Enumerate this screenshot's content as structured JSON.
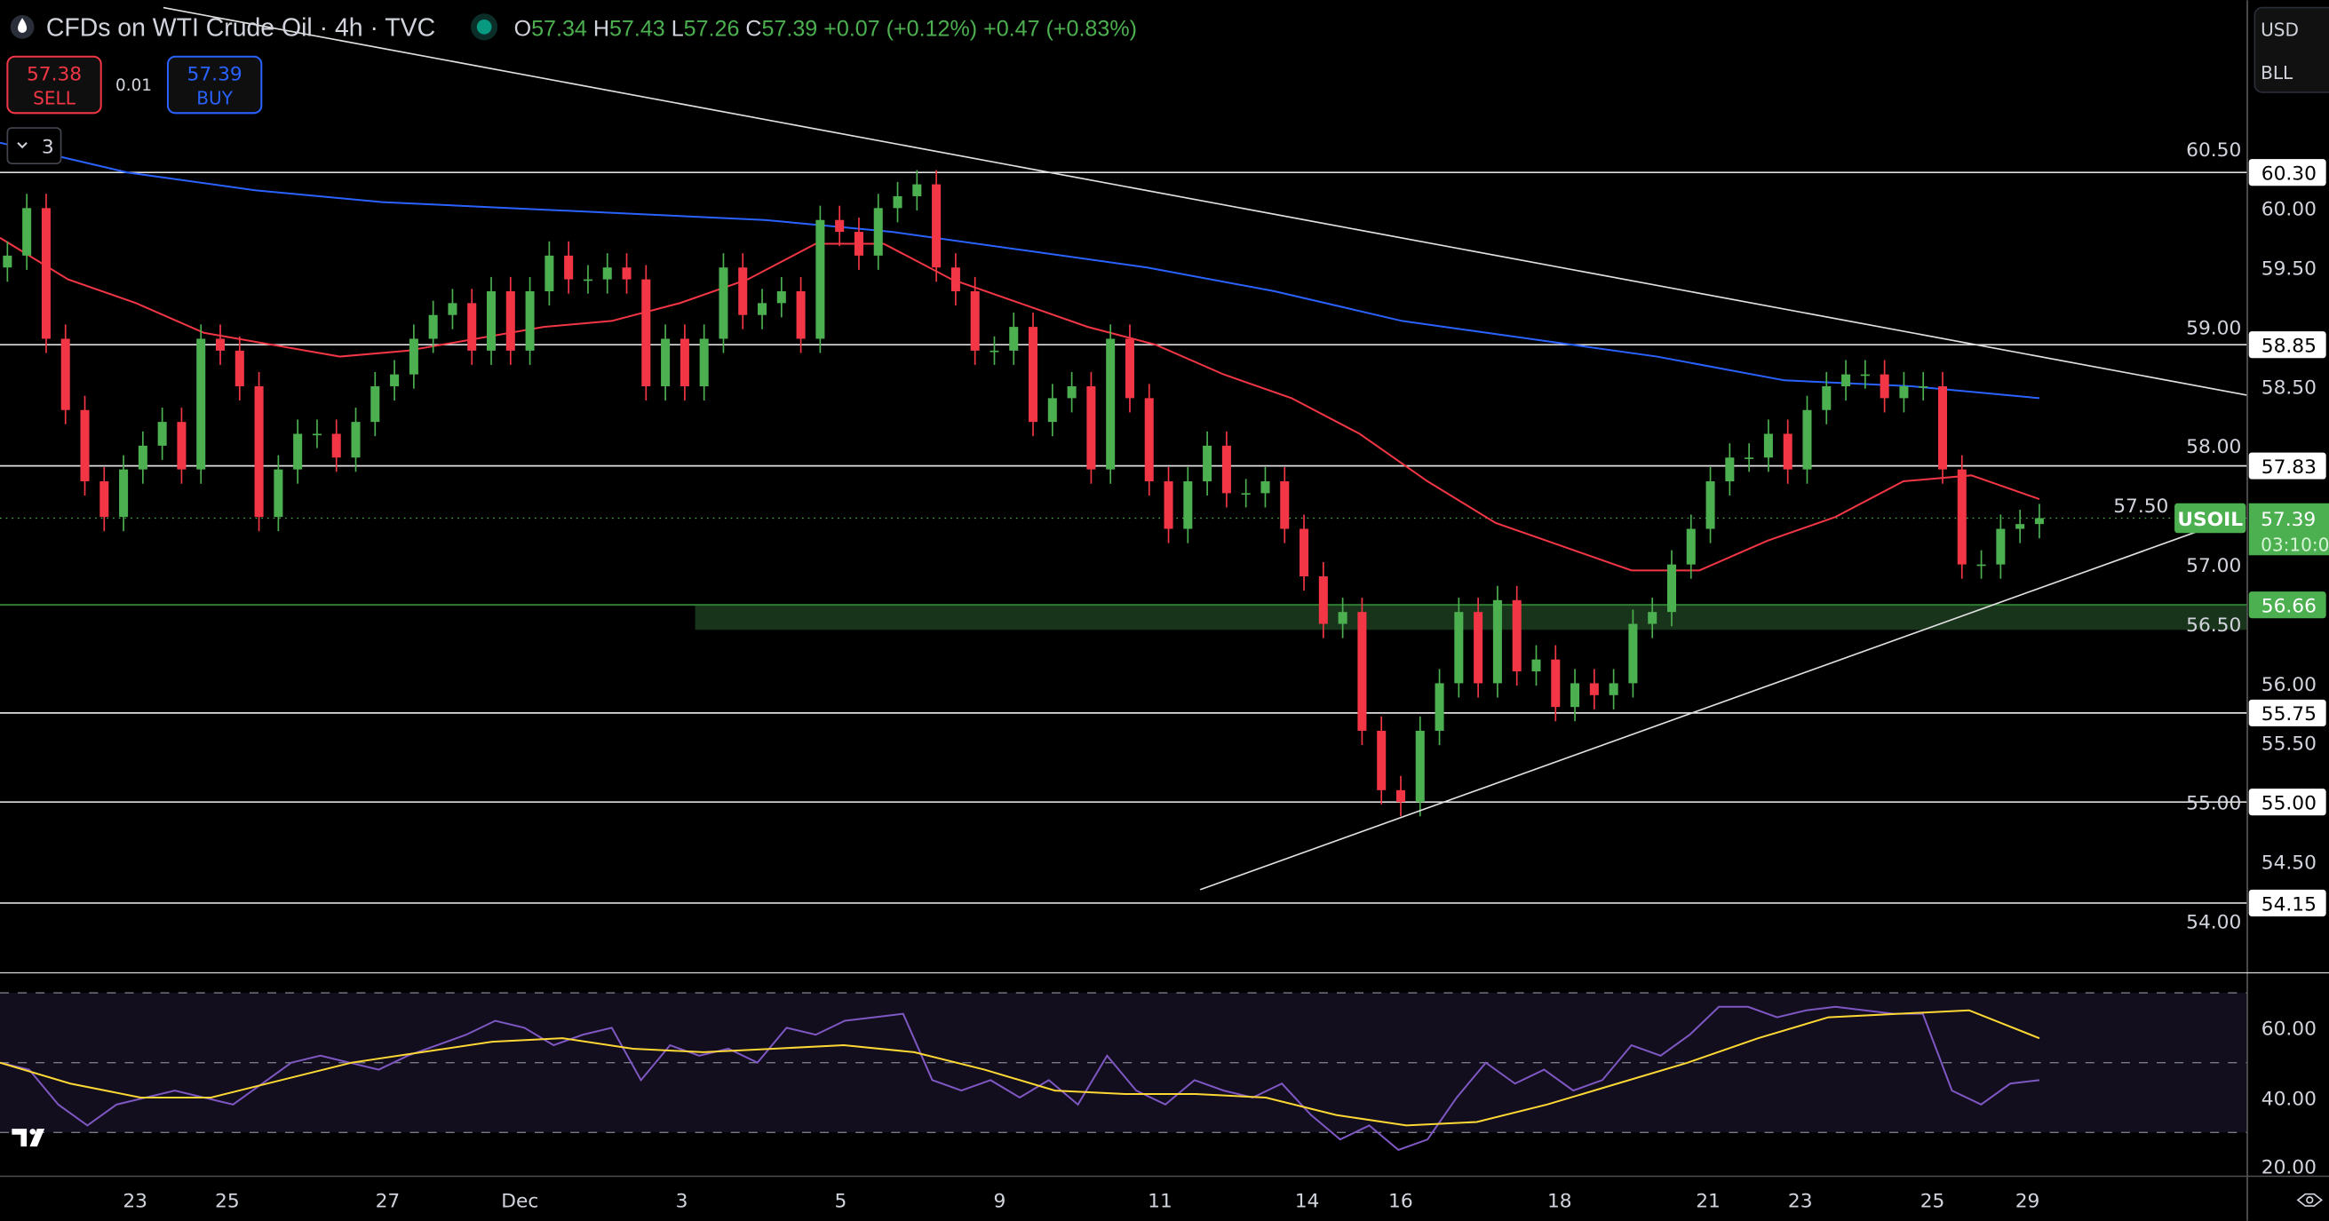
{
  "header": {
    "title": "CFDs on WTI Crude Oil · 4h · TVC",
    "ohlc": {
      "o_label": "O",
      "o": "57.34",
      "h_label": "H",
      "h": "57.43",
      "l_label": "L",
      "l": "57.26",
      "c_label": "C",
      "c": "57.39",
      "change": "+0.07 (+0.12%)",
      "change2": "+0.47 (+0.83%)"
    },
    "up_color": "#4caf50"
  },
  "trade": {
    "sell_price": "57.38",
    "sell_label": "SELL",
    "spread": "0.01",
    "buy_price": "57.39",
    "buy_label": "BUY"
  },
  "indicators_toggle": {
    "count": "3"
  },
  "currency": {
    "currency": "USD",
    "unit": "BLL"
  },
  "price_axis": {
    "ticks": [
      "60.50",
      "60.00",
      "59.50",
      "59.00",
      "58.50",
      "58.00",
      "57.50",
      "57.00",
      "56.50",
      "56.00",
      "55.50",
      "55.00",
      "54.50",
      "54.00"
    ],
    "levels": [
      {
        "label": "60.30",
        "value": 60.3
      },
      {
        "label": "58.85",
        "value": 58.85
      },
      {
        "label": "57.83",
        "value": 57.83
      },
      {
        "label": "55.75",
        "value": 55.75
      },
      {
        "label": "55.00",
        "value": 55.0
      },
      {
        "label": "54.15",
        "value": 54.15
      }
    ],
    "support": {
      "label": "56.66",
      "value": 56.66,
      "zone_low": 56.45,
      "color": "#4caf50"
    },
    "current": {
      "symbol": "USOIL",
      "price": "57.39",
      "value": 57.39,
      "countdown": "03:10:0"
    }
  },
  "rsi_axis": {
    "ticks": [
      "60.00",
      "40.00",
      "20.00"
    ],
    "upper": 70,
    "middle": 50,
    "lower": 30
  },
  "time_axis": {
    "labels": [
      "23",
      "25",
      "27",
      "Dec",
      "3",
      "5",
      "9",
      "11",
      "14",
      "16",
      "18",
      "21",
      "23",
      "25",
      "29"
    ]
  },
  "chart_data": {
    "type": "candlestick",
    "closes": [
      59.6,
      60.0,
      58.9,
      58.3,
      57.7,
      57.4,
      57.8,
      58.0,
      58.2,
      57.8,
      58.9,
      58.8,
      58.5,
      57.4,
      57.8,
      58.1,
      58.1,
      57.9,
      58.2,
      58.5,
      58.6,
      58.9,
      59.1,
      59.2,
      58.8,
      59.3,
      58.8,
      59.3,
      59.6,
      59.4,
      59.4,
      59.5,
      59.4,
      58.5,
      58.9,
      58.5,
      58.9,
      59.5,
      59.1,
      59.2,
      59.3,
      58.9,
      59.9,
      59.8,
      59.6,
      60.0,
      60.1,
      60.2,
      59.5,
      59.3,
      58.8,
      58.8,
      59.0,
      58.2,
      58.4,
      58.5,
      57.8,
      58.9,
      58.4,
      57.7,
      57.3,
      57.7,
      58.0,
      57.6,
      57.6,
      57.7,
      57.3,
      56.9,
      56.5,
      56.6,
      55.6,
      55.1,
      55.0,
      55.6,
      56.0,
      56.6,
      56.0,
      56.7,
      56.1,
      56.2,
      55.8,
      56.0,
      55.9,
      56.0,
      56.5,
      56.6,
      57.0,
      57.3,
      57.7,
      57.9,
      57.9,
      58.1,
      57.8,
      58.3,
      58.5,
      58.6,
      58.6,
      58.4,
      58.5,
      58.5,
      57.8,
      57.0,
      57.0,
      57.3,
      57.34,
      57.39
    ],
    "ma_red": [
      59.75,
      59.4,
      59.2,
      58.95,
      58.85,
      58.75,
      58.8,
      58.9,
      59.0,
      59.05,
      59.2,
      59.4,
      59.7,
      59.7,
      59.4,
      59.2,
      59.0,
      58.85,
      58.6,
      58.4,
      58.1,
      57.7,
      57.35,
      57.15,
      56.95,
      56.95,
      57.2,
      57.4,
      57.7,
      57.75,
      57.55
    ],
    "ma_blue": [
      60.55,
      60.3,
      60.15,
      60.05,
      60.0,
      59.95,
      59.9,
      59.8,
      59.65,
      59.5,
      59.3,
      59.05,
      58.9,
      58.75,
      58.55,
      58.5,
      58.4
    ],
    "rsi": [
      50,
      48,
      38,
      32,
      38,
      40,
      42,
      40,
      38,
      44,
      50,
      52,
      50,
      48,
      52,
      55,
      58,
      62,
      60,
      55,
      58,
      60,
      45,
      55,
      52,
      54,
      50,
      60,
      58,
      62,
      63,
      64,
      45,
      42,
      45,
      40,
      45,
      38,
      52,
      42,
      38,
      45,
      42,
      40,
      44,
      35,
      28,
      32,
      25,
      28,
      40,
      50,
      44,
      48,
      42,
      45,
      55,
      52,
      58,
      66,
      66,
      63,
      65,
      66,
      65,
      64,
      64,
      42,
      38,
      44,
      45
    ],
    "rsi_ma": [
      50,
      44,
      40,
      40,
      45,
      50,
      53,
      56,
      57,
      54,
      53,
      54,
      55,
      53,
      48,
      42,
      41,
      41,
      40,
      35,
      32,
      33,
      38,
      44,
      50,
      57,
      63,
      64,
      65,
      57
    ],
    "colors": {
      "up": "#4caf50",
      "down": "#f23645",
      "ma_fast": "#f23645",
      "ma_slow": "#2962ff",
      "rsi": "#7e57c2",
      "rsi_ma": "#fdd835"
    }
  }
}
